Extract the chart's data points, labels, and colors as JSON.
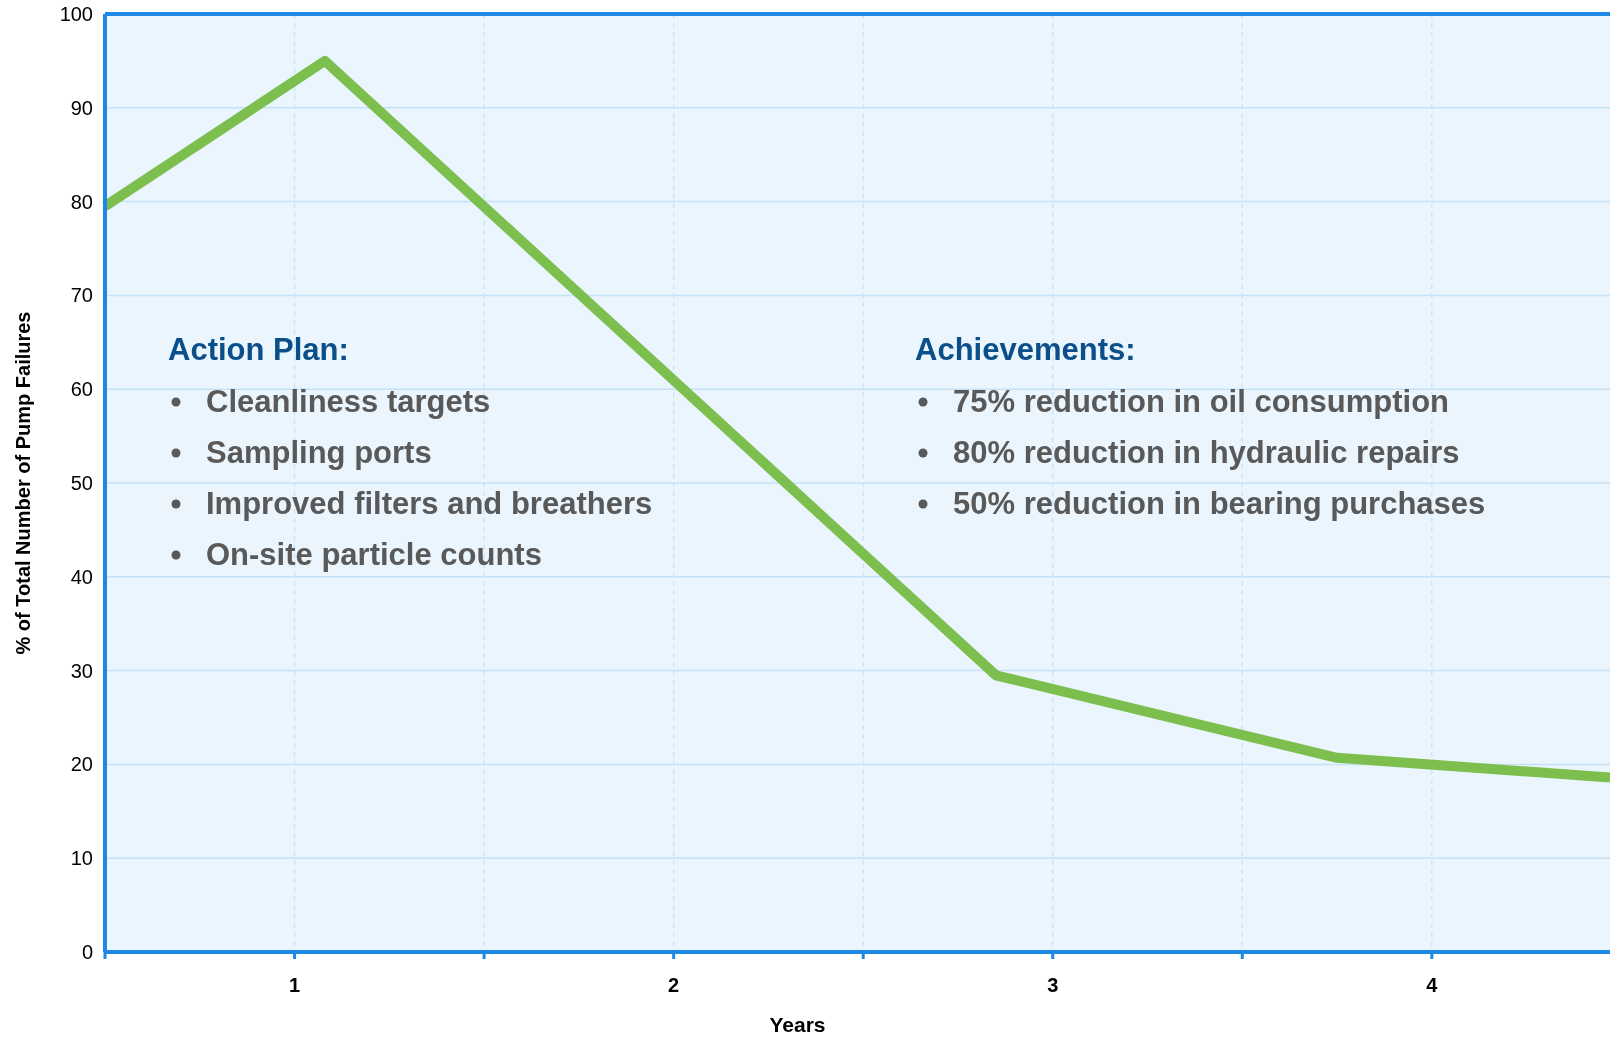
{
  "chart_data": {
    "type": "line",
    "xlabel": "Years",
    "ylabel": "% of Total Number of Pump Failures",
    "x": [
      0.5,
      1.08,
      2.85,
      3.75,
      4.47
    ],
    "series": [
      {
        "color": "#7dbf4e",
        "values": [
          79.5,
          95,
          29.5,
          20.7,
          18.6
        ]
      }
    ],
    "xlim": [
      0.5,
      4.47
    ],
    "ylim": [
      0,
      100
    ],
    "xticks": [
      {
        "value": 0.5,
        "label": null
      },
      1,
      {
        "value": 1.5,
        "label": null
      },
      2,
      {
        "value": 2.5,
        "label": null
      },
      3,
      {
        "value": 3.5,
        "label": null
      },
      4
    ],
    "yticks": [
      0,
      10,
      20,
      30,
      40,
      50,
      60,
      70,
      80,
      90,
      100
    ],
    "grid": true,
    "marker": "none",
    "line_style": "solid",
    "annotations": [
      "Action Plan:",
      "Cleanliness targets",
      "Sampling ports",
      "Improved filters and breathers",
      "On-site particle counts",
      "Achievements:",
      "75% reduction in oil consumption",
      "80% reduction in hydraulic repairs",
      "50% reduction in bearing purchases"
    ]
  }
}
